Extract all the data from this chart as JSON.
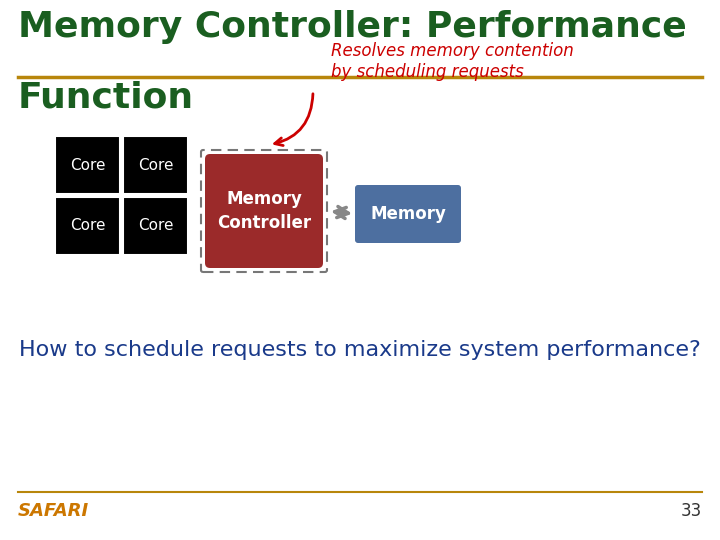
{
  "title_line1": "Memory Controller: Performance",
  "title_line2": "Function",
  "title_color": "#1a5e20",
  "title_fontsize": 26,
  "separator_color": "#b8860b",
  "annotation_text": "Resolves memory contention\nby scheduling requests",
  "annotation_color": "#cc0000",
  "annotation_fontsize": 12,
  "core_bg": "#000000",
  "core_text_color": "#ffffff",
  "core_fontsize": 11,
  "mc_bg": "#9b2a2a",
  "mc_text": "Memory\nController",
  "mc_text_color": "#ffffff",
  "mc_fontsize": 12,
  "mc_border_color": "#777777",
  "mem_bg": "#4d6fa0",
  "mem_text": "Memory",
  "mem_text_color": "#ffffff",
  "mem_fontsize": 12,
  "arrow_color": "#888888",
  "question_text": "How to schedule requests to maximize system performance?",
  "question_color": "#1a3a8a",
  "question_fontsize": 16,
  "safari_text": "SAFARI",
  "safari_color": "#cc7700",
  "safari_fontsize": 13,
  "page_num": "33",
  "bg_color": "#ffffff"
}
